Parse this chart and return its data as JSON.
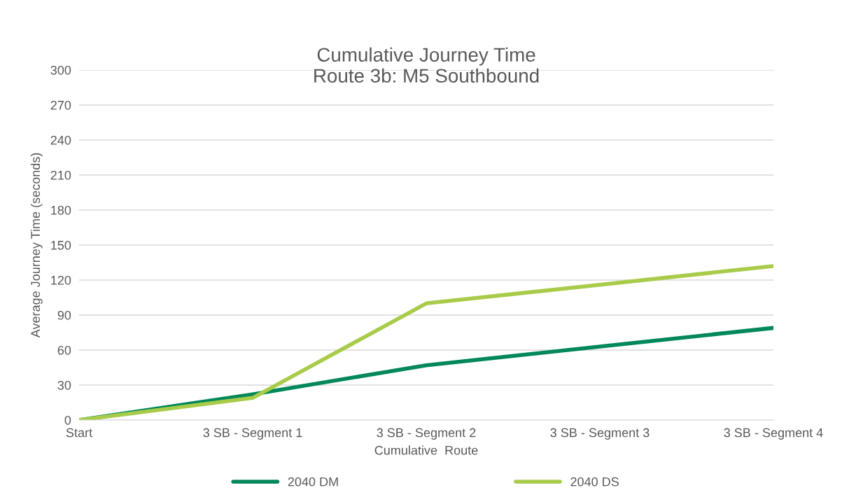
{
  "chart_data": {
    "type": "line",
    "title": "Cumulative Journey Time\nRoute 3b: M5 Southbound",
    "xlabel": "Cumulative  Route",
    "ylabel": "Average Journey Time (seconds)",
    "categories": [
      "Start",
      "3 SB - Segment 1",
      "3 SB - Segment 2",
      "3 SB - Segment 3",
      "3 SB - Segment 4"
    ],
    "series": [
      {
        "name": "2040 DM",
        "color": "#00875a",
        "values": [
          0,
          22,
          47,
          63,
          79
        ]
      },
      {
        "name": "2040 DS",
        "color": "#a8cc4a",
        "values": [
          0,
          19,
          100,
          116,
          132
        ]
      }
    ],
    "ylim": [
      0,
      300
    ],
    "yticks": [
      0,
      30,
      60,
      90,
      120,
      150,
      180,
      210,
      240,
      270,
      300
    ],
    "grid": "y",
    "legend": "bottom",
    "marker": "none",
    "line_style": "solid"
  }
}
